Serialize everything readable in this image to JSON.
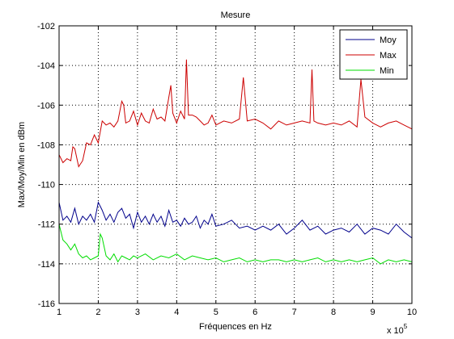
{
  "chart_data": {
    "type": "line",
    "title": "Mesure",
    "xlabel": "Fréquences en Hz",
    "ylabel": "Max/Moy/Min en dBm",
    "x_scale_base": "x 10",
    "x_scale_exponent": "5",
    "xlim": [
      1,
      10
    ],
    "ylim": [
      -116,
      -102
    ],
    "grid": true,
    "legend_position": "top-right",
    "xticks": [
      1,
      2,
      3,
      4,
      5,
      6,
      7,
      8,
      9,
      10
    ],
    "yticks": [
      -102,
      -104,
      -106,
      -108,
      -110,
      -112,
      -114,
      -116
    ],
    "series": [
      {
        "name": "Moy",
        "color": "#00008b",
        "x": [
          1.0,
          1.1,
          1.2,
          1.3,
          1.4,
          1.5,
          1.6,
          1.7,
          1.8,
          1.9,
          2.0,
          2.05,
          2.1,
          2.2,
          2.3,
          2.4,
          2.5,
          2.6,
          2.7,
          2.8,
          2.9,
          3.0,
          3.1,
          3.2,
          3.3,
          3.4,
          3.5,
          3.6,
          3.7,
          3.8,
          3.9,
          4.0,
          4.1,
          4.2,
          4.3,
          4.4,
          4.5,
          4.6,
          4.7,
          4.8,
          4.9,
          5.0,
          5.2,
          5.4,
          5.6,
          5.8,
          6.0,
          6.2,
          6.4,
          6.6,
          6.8,
          7.0,
          7.2,
          7.4,
          7.6,
          7.8,
          8.0,
          8.2,
          8.4,
          8.6,
          8.8,
          9.0,
          9.2,
          9.4,
          9.6,
          9.8,
          10.0
        ],
        "values": [
          -110.9,
          -111.8,
          -111.6,
          -111.9,
          -111.2,
          -112.0,
          -111.6,
          -111.8,
          -111.5,
          -111.9,
          -110.9,
          -111.1,
          -111.3,
          -111.8,
          -111.5,
          -111.9,
          -111.4,
          -111.2,
          -111.7,
          -111.5,
          -112.2,
          -111.4,
          -111.9,
          -111.6,
          -112.0,
          -111.5,
          -111.9,
          -111.6,
          -112.1,
          -111.3,
          -111.9,
          -111.8,
          -112.1,
          -111.7,
          -112.0,
          -111.9,
          -111.6,
          -112.2,
          -111.8,
          -112.0,
          -111.5,
          -112.1,
          -112.0,
          -111.8,
          -112.2,
          -112.1,
          -112.3,
          -112.1,
          -112.3,
          -112.0,
          -112.5,
          -112.2,
          -111.8,
          -112.3,
          -112.1,
          -112.5,
          -112.3,
          -112.2,
          -112.4,
          -112.0,
          -112.5,
          -112.2,
          -112.3,
          -112.5,
          -112.0,
          -112.4,
          -112.7
        ]
      },
      {
        "name": "Max",
        "color": "#cc0000",
        "x": [
          1.0,
          1.1,
          1.2,
          1.3,
          1.35,
          1.4,
          1.5,
          1.6,
          1.7,
          1.8,
          1.9,
          2.0,
          2.1,
          2.2,
          2.3,
          2.4,
          2.5,
          2.6,
          2.65,
          2.7,
          2.8,
          2.9,
          3.0,
          3.1,
          3.2,
          3.3,
          3.4,
          3.5,
          3.6,
          3.7,
          3.8,
          3.85,
          3.9,
          4.0,
          4.1,
          4.2,
          4.25,
          4.3,
          4.4,
          4.5,
          4.6,
          4.7,
          4.8,
          4.9,
          5.0,
          5.2,
          5.4,
          5.6,
          5.7,
          5.8,
          6.0,
          6.2,
          6.4,
          6.6,
          6.8,
          7.0,
          7.2,
          7.4,
          7.45,
          7.5,
          7.6,
          7.8,
          8.0,
          8.2,
          8.4,
          8.6,
          8.7,
          8.8,
          9.0,
          9.2,
          9.4,
          9.6,
          9.8,
          10.0
        ],
        "values": [
          -108.5,
          -108.9,
          -108.7,
          -108.8,
          -108.1,
          -108.2,
          -109.1,
          -108.8,
          -107.9,
          -108.0,
          -107.5,
          -107.9,
          -106.8,
          -107.0,
          -106.9,
          -107.1,
          -106.8,
          -105.8,
          -106.0,
          -106.9,
          -106.8,
          -106.3,
          -107.0,
          -106.4,
          -106.8,
          -106.9,
          -106.2,
          -106.7,
          -106.6,
          -106.8,
          -105.6,
          -105.0,
          -106.4,
          -106.9,
          -106.3,
          -106.7,
          -103.7,
          -106.5,
          -106.5,
          -106.6,
          -106.8,
          -107.0,
          -106.9,
          -106.5,
          -107.0,
          -106.8,
          -106.9,
          -106.7,
          -104.6,
          -106.8,
          -106.7,
          -106.9,
          -107.2,
          -106.8,
          -107.0,
          -106.9,
          -106.8,
          -106.9,
          -104.2,
          -106.8,
          -106.9,
          -107.0,
          -106.9,
          -107.0,
          -106.8,
          -107.1,
          -104.7,
          -106.6,
          -106.9,
          -107.1,
          -106.9,
          -106.8,
          -107.0,
          -107.2
        ]
      },
      {
        "name": "Min",
        "color": "#00dd00",
        "x": [
          1.0,
          1.1,
          1.2,
          1.3,
          1.4,
          1.5,
          1.6,
          1.7,
          1.8,
          1.9,
          2.0,
          2.05,
          2.1,
          2.2,
          2.3,
          2.4,
          2.5,
          2.6,
          2.7,
          2.8,
          2.9,
          3.0,
          3.2,
          3.4,
          3.6,
          3.8,
          4.0,
          4.2,
          4.4,
          4.6,
          4.8,
          5.0,
          5.2,
          5.4,
          5.6,
          5.8,
          6.0,
          6.2,
          6.4,
          6.6,
          6.8,
          7.0,
          7.2,
          7.4,
          7.6,
          7.8,
          8.0,
          8.2,
          8.4,
          8.6,
          8.8,
          9.0,
          9.2,
          9.4,
          9.6,
          9.8,
          10.0
        ],
        "values": [
          -112.0,
          -112.8,
          -113.0,
          -113.3,
          -113.0,
          -113.5,
          -113.7,
          -113.6,
          -113.8,
          -113.7,
          -113.6,
          -112.5,
          -112.7,
          -113.6,
          -113.8,
          -113.5,
          -113.9,
          -113.6,
          -113.7,
          -113.8,
          -113.6,
          -113.7,
          -113.5,
          -113.8,
          -113.6,
          -113.7,
          -113.5,
          -113.8,
          -113.6,
          -113.7,
          -113.8,
          -113.7,
          -113.9,
          -113.8,
          -113.7,
          -113.9,
          -113.8,
          -113.9,
          -113.8,
          -113.8,
          -113.9,
          -113.8,
          -113.9,
          -113.8,
          -113.7,
          -113.9,
          -113.8,
          -113.9,
          -113.8,
          -113.9,
          -113.8,
          -113.7,
          -114.0,
          -113.8,
          -113.9,
          -113.8,
          -113.9
        ]
      }
    ]
  }
}
